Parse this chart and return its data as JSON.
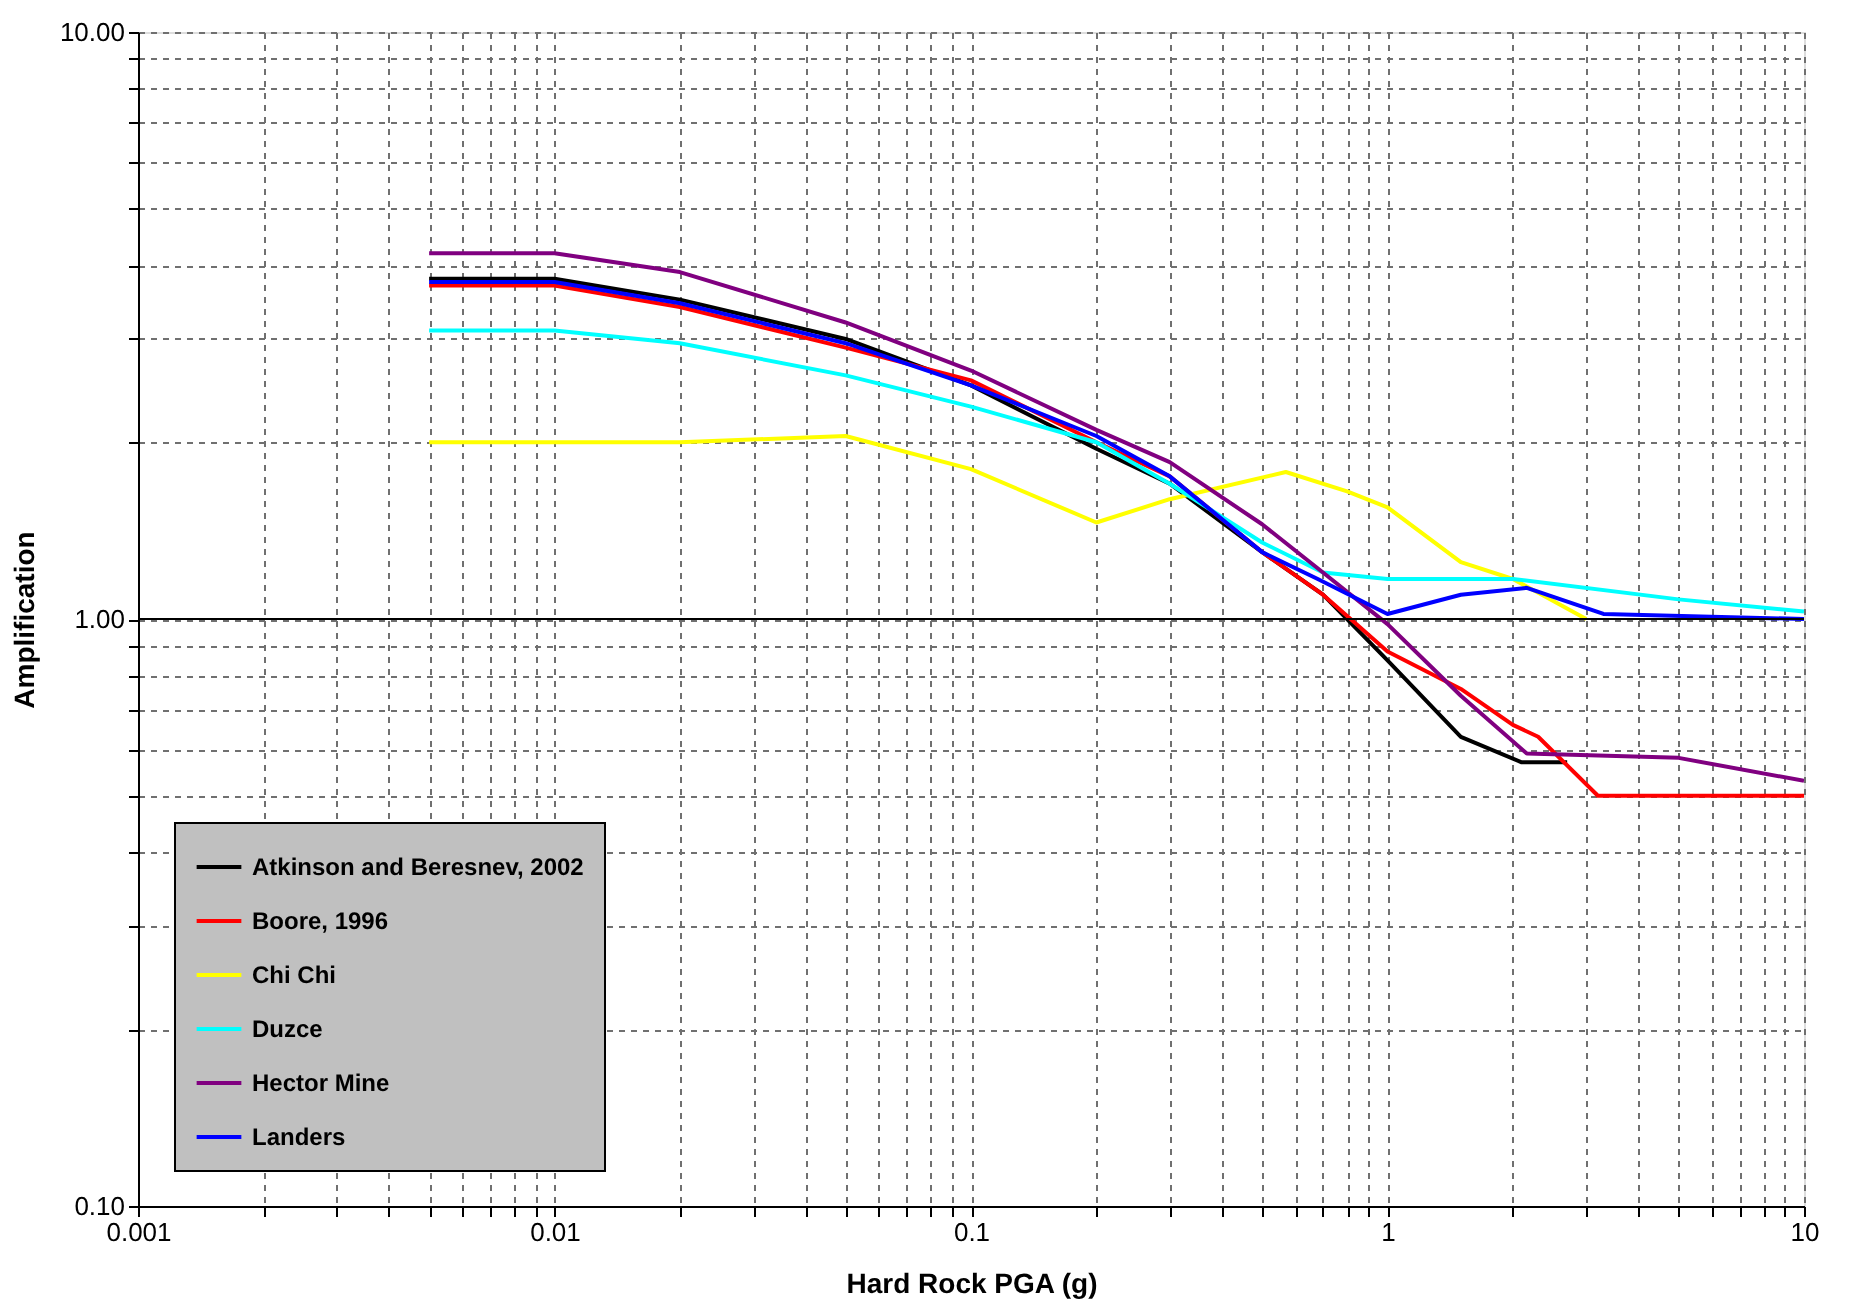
{
  "chart_data": {
    "type": "line",
    "xlabel": "Hard Rock PGA (g)",
    "ylabel": "Amplification",
    "log": "xy",
    "grid": true,
    "legend": "bottom left",
    "line_style": "solid",
    "marker": "none",
    "xlim": [
      0.001,
      10
    ],
    "ylim": [
      0.1,
      10
    ],
    "xticks": [
      {
        "value": 0.001,
        "label": "0.001"
      },
      {
        "value": 0.002,
        "label": null
      },
      {
        "value": 0.003,
        "label": null
      },
      {
        "value": 0.004,
        "label": null
      },
      {
        "value": 0.005,
        "label": null
      },
      {
        "value": 0.006,
        "label": null
      },
      {
        "value": 0.007,
        "label": null
      },
      {
        "value": 0.008,
        "label": null
      },
      {
        "value": 0.009,
        "label": null
      },
      {
        "value": 0.01,
        "label": "0.01"
      },
      {
        "value": 0.02,
        "label": null
      },
      {
        "value": 0.03,
        "label": null
      },
      {
        "value": 0.04,
        "label": null
      },
      {
        "value": 0.05,
        "label": null
      },
      {
        "value": 0.06,
        "label": null
      },
      {
        "value": 0.07,
        "label": null
      },
      {
        "value": 0.08,
        "label": null
      },
      {
        "value": 0.09,
        "label": null
      },
      {
        "value": 0.1,
        "label": "0.1"
      },
      {
        "value": 0.2,
        "label": null
      },
      {
        "value": 0.3,
        "label": null
      },
      {
        "value": 0.4,
        "label": null
      },
      {
        "value": 0.5,
        "label": null
      },
      {
        "value": 0.6,
        "label": null
      },
      {
        "value": 0.7,
        "label": null
      },
      {
        "value": 0.8,
        "label": null
      },
      {
        "value": 0.9,
        "label": null
      },
      {
        "value": 1,
        "label": "1"
      },
      {
        "value": 2,
        "label": null
      },
      {
        "value": 3,
        "label": null
      },
      {
        "value": 4,
        "label": null
      },
      {
        "value": 5,
        "label": null
      },
      {
        "value": 6,
        "label": null
      },
      {
        "value": 7,
        "label": null
      },
      {
        "value": 8,
        "label": null
      },
      {
        "value": 9,
        "label": null
      },
      {
        "value": 10,
        "label": "10"
      }
    ],
    "yticks": [
      {
        "value": 0.1,
        "label": "0.10"
      },
      {
        "value": 0.2,
        "label": null
      },
      {
        "value": 0.3,
        "label": null
      },
      {
        "value": 0.4,
        "label": null
      },
      {
        "value": 0.5,
        "label": null
      },
      {
        "value": 0.6,
        "label": null
      },
      {
        "value": 0.7,
        "label": null
      },
      {
        "value": 0.8,
        "label": null
      },
      {
        "value": 0.9,
        "label": null
      },
      {
        "value": 1,
        "label": "1.00"
      },
      {
        "value": 2,
        "label": null
      },
      {
        "value": 3,
        "label": null
      },
      {
        "value": 4,
        "label": null
      },
      {
        "value": 5,
        "label": null
      },
      {
        "value": 6,
        "label": null
      },
      {
        "value": 7,
        "label": null
      },
      {
        "value": 8,
        "label": null
      },
      {
        "value": 9,
        "label": null
      },
      {
        "value": 10,
        "label": "10.00"
      }
    ],
    "ref_lines": [
      {
        "axis": "y",
        "value": 1,
        "color": "#000000"
      }
    ],
    "series": [
      {
        "name": "Atkinson and Beresnev, 2002",
        "color": "#000000",
        "x": [
          0.005,
          0.01,
          0.02,
          0.05,
          0.1,
          0.2,
          0.3,
          0.5,
          0.7,
          1,
          1.5,
          2.1,
          2.7
        ],
        "values": [
          3.8,
          3.8,
          3.5,
          3.0,
          2.5,
          1.95,
          1.7,
          1.3,
          1.1,
          0.85,
          0.63,
          0.57,
          0.57
        ]
      },
      {
        "name": "Boore, 1996",
        "color": "#ff0000",
        "x": [
          0.005,
          0.01,
          0.02,
          0.05,
          0.1,
          0.2,
          0.3,
          0.5,
          0.7,
          1,
          1.5,
          2,
          2.3,
          3.2,
          10
        ],
        "values": [
          3.7,
          3.7,
          3.4,
          2.9,
          2.55,
          2.0,
          1.75,
          1.3,
          1.1,
          0.88,
          0.76,
          0.66,
          0.63,
          0.5,
          0.5
        ]
      },
      {
        "name": "Chi Chi",
        "color": "#ffff00",
        "x": [
          0.005,
          0.02,
          0.05,
          0.1,
          0.2,
          0.3,
          0.57,
          0.8,
          1,
          1.5,
          2,
          3
        ],
        "values": [
          2.0,
          2.0,
          2.05,
          1.8,
          1.46,
          1.6,
          1.78,
          1.65,
          1.55,
          1.25,
          1.17,
          1.0
        ]
      },
      {
        "name": "Duzce",
        "color": "#00ffff",
        "x": [
          0.005,
          0.01,
          0.02,
          0.05,
          0.1,
          0.2,
          0.3,
          0.5,
          0.7,
          1,
          2,
          5,
          10
        ],
        "values": [
          3.1,
          3.1,
          2.95,
          2.6,
          2.3,
          2.0,
          1.7,
          1.35,
          1.2,
          1.17,
          1.17,
          1.08,
          1.03
        ]
      },
      {
        "name": "Hector Mine",
        "color": "#800080",
        "x": [
          0.005,
          0.01,
          0.02,
          0.05,
          0.1,
          0.2,
          0.3,
          0.5,
          0.7,
          1,
          1.5,
          2.16,
          5,
          10
        ],
        "values": [
          4.2,
          4.2,
          3.9,
          3.2,
          2.65,
          2.1,
          1.85,
          1.45,
          1.2,
          0.98,
          0.74,
          0.59,
          0.58,
          0.53
        ]
      },
      {
        "name": "Landers",
        "color": "#0000ff",
        "x": [
          0.005,
          0.01,
          0.02,
          0.05,
          0.1,
          0.2,
          0.3,
          0.5,
          0.68,
          1,
          1.5,
          2.16,
          3.3,
          10
        ],
        "values": [
          3.75,
          3.75,
          3.45,
          2.95,
          2.5,
          2.05,
          1.75,
          1.3,
          1.17,
          1.02,
          1.1,
          1.13,
          1.02,
          1.0
        ]
      }
    ]
  }
}
